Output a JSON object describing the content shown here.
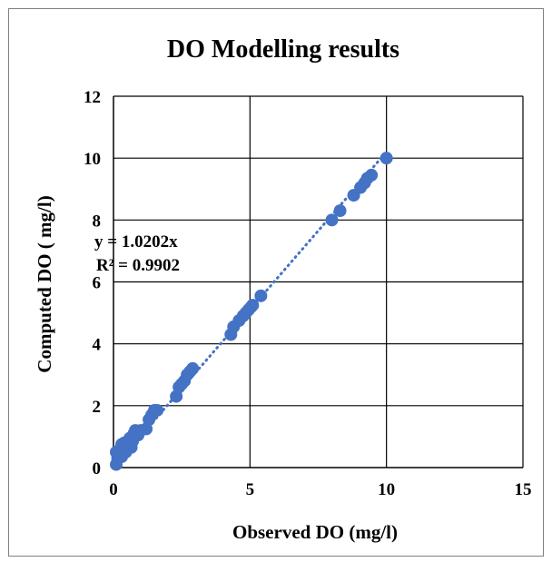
{
  "chart_data": {
    "type": "scatter",
    "title": "DO Modelling results",
    "xlabel": "Observed DO (mg/l)",
    "ylabel": "Computed DO ( mg/l)",
    "xlim": [
      0,
      15
    ],
    "ylim": [
      0,
      12
    ],
    "x_ticks": [
      "0",
      "5",
      "10",
      "15"
    ],
    "y_ticks": [
      "0",
      "2",
      "4",
      "6",
      "8",
      "10",
      "12"
    ],
    "x_tick_values": [
      0,
      5,
      10,
      15
    ],
    "y_tick_values": [
      0,
      2,
      4,
      6,
      8,
      10,
      12
    ],
    "grid": true,
    "legend": "none",
    "marker_color": "#4472C4",
    "trendline": {
      "type": "linear-through-origin",
      "slope": 1.0202,
      "style": "dotted",
      "color": "#4472C4"
    },
    "annotations": {
      "equation": "y = 1.0202x",
      "r_squared": "R² = 0.9902"
    },
    "points": [
      [
        0.1,
        0.1
      ],
      [
        0.1,
        0.5
      ],
      [
        0.15,
        0.3
      ],
      [
        0.2,
        0.45
      ],
      [
        0.25,
        0.6
      ],
      [
        0.3,
        0.35
      ],
      [
        0.3,
        0.75
      ],
      [
        0.35,
        0.55
      ],
      [
        0.4,
        0.8
      ],
      [
        0.45,
        0.5
      ],
      [
        0.5,
        0.7
      ],
      [
        0.6,
        0.95
      ],
      [
        0.65,
        0.65
      ],
      [
        0.7,
        0.85
      ],
      [
        0.75,
        1.1
      ],
      [
        0.8,
        1.2
      ],
      [
        0.9,
        1.05
      ],
      [
        1.0,
        1.2
      ],
      [
        1.2,
        1.25
      ],
      [
        1.3,
        1.55
      ],
      [
        1.4,
        1.7
      ],
      [
        1.5,
        1.85
      ],
      [
        1.6,
        1.85
      ],
      [
        2.3,
        2.3
      ],
      [
        2.4,
        2.6
      ],
      [
        2.5,
        2.7
      ],
      [
        2.6,
        2.8
      ],
      [
        2.7,
        3.0
      ],
      [
        2.8,
        3.1
      ],
      [
        2.9,
        3.2
      ],
      [
        4.3,
        4.3
      ],
      [
        4.4,
        4.55
      ],
      [
        4.6,
        4.75
      ],
      [
        4.75,
        4.9
      ],
      [
        4.85,
        5.0
      ],
      [
        4.95,
        5.1
      ],
      [
        5.05,
        5.2
      ],
      [
        5.1,
        5.25
      ],
      [
        5.4,
        5.55
      ],
      [
        8.0,
        8.0
      ],
      [
        8.3,
        8.3
      ],
      [
        8.8,
        8.8
      ],
      [
        9.05,
        9.05
      ],
      [
        9.2,
        9.2
      ],
      [
        9.3,
        9.35
      ],
      [
        9.45,
        9.45
      ],
      [
        10.0,
        10.0
      ]
    ]
  }
}
